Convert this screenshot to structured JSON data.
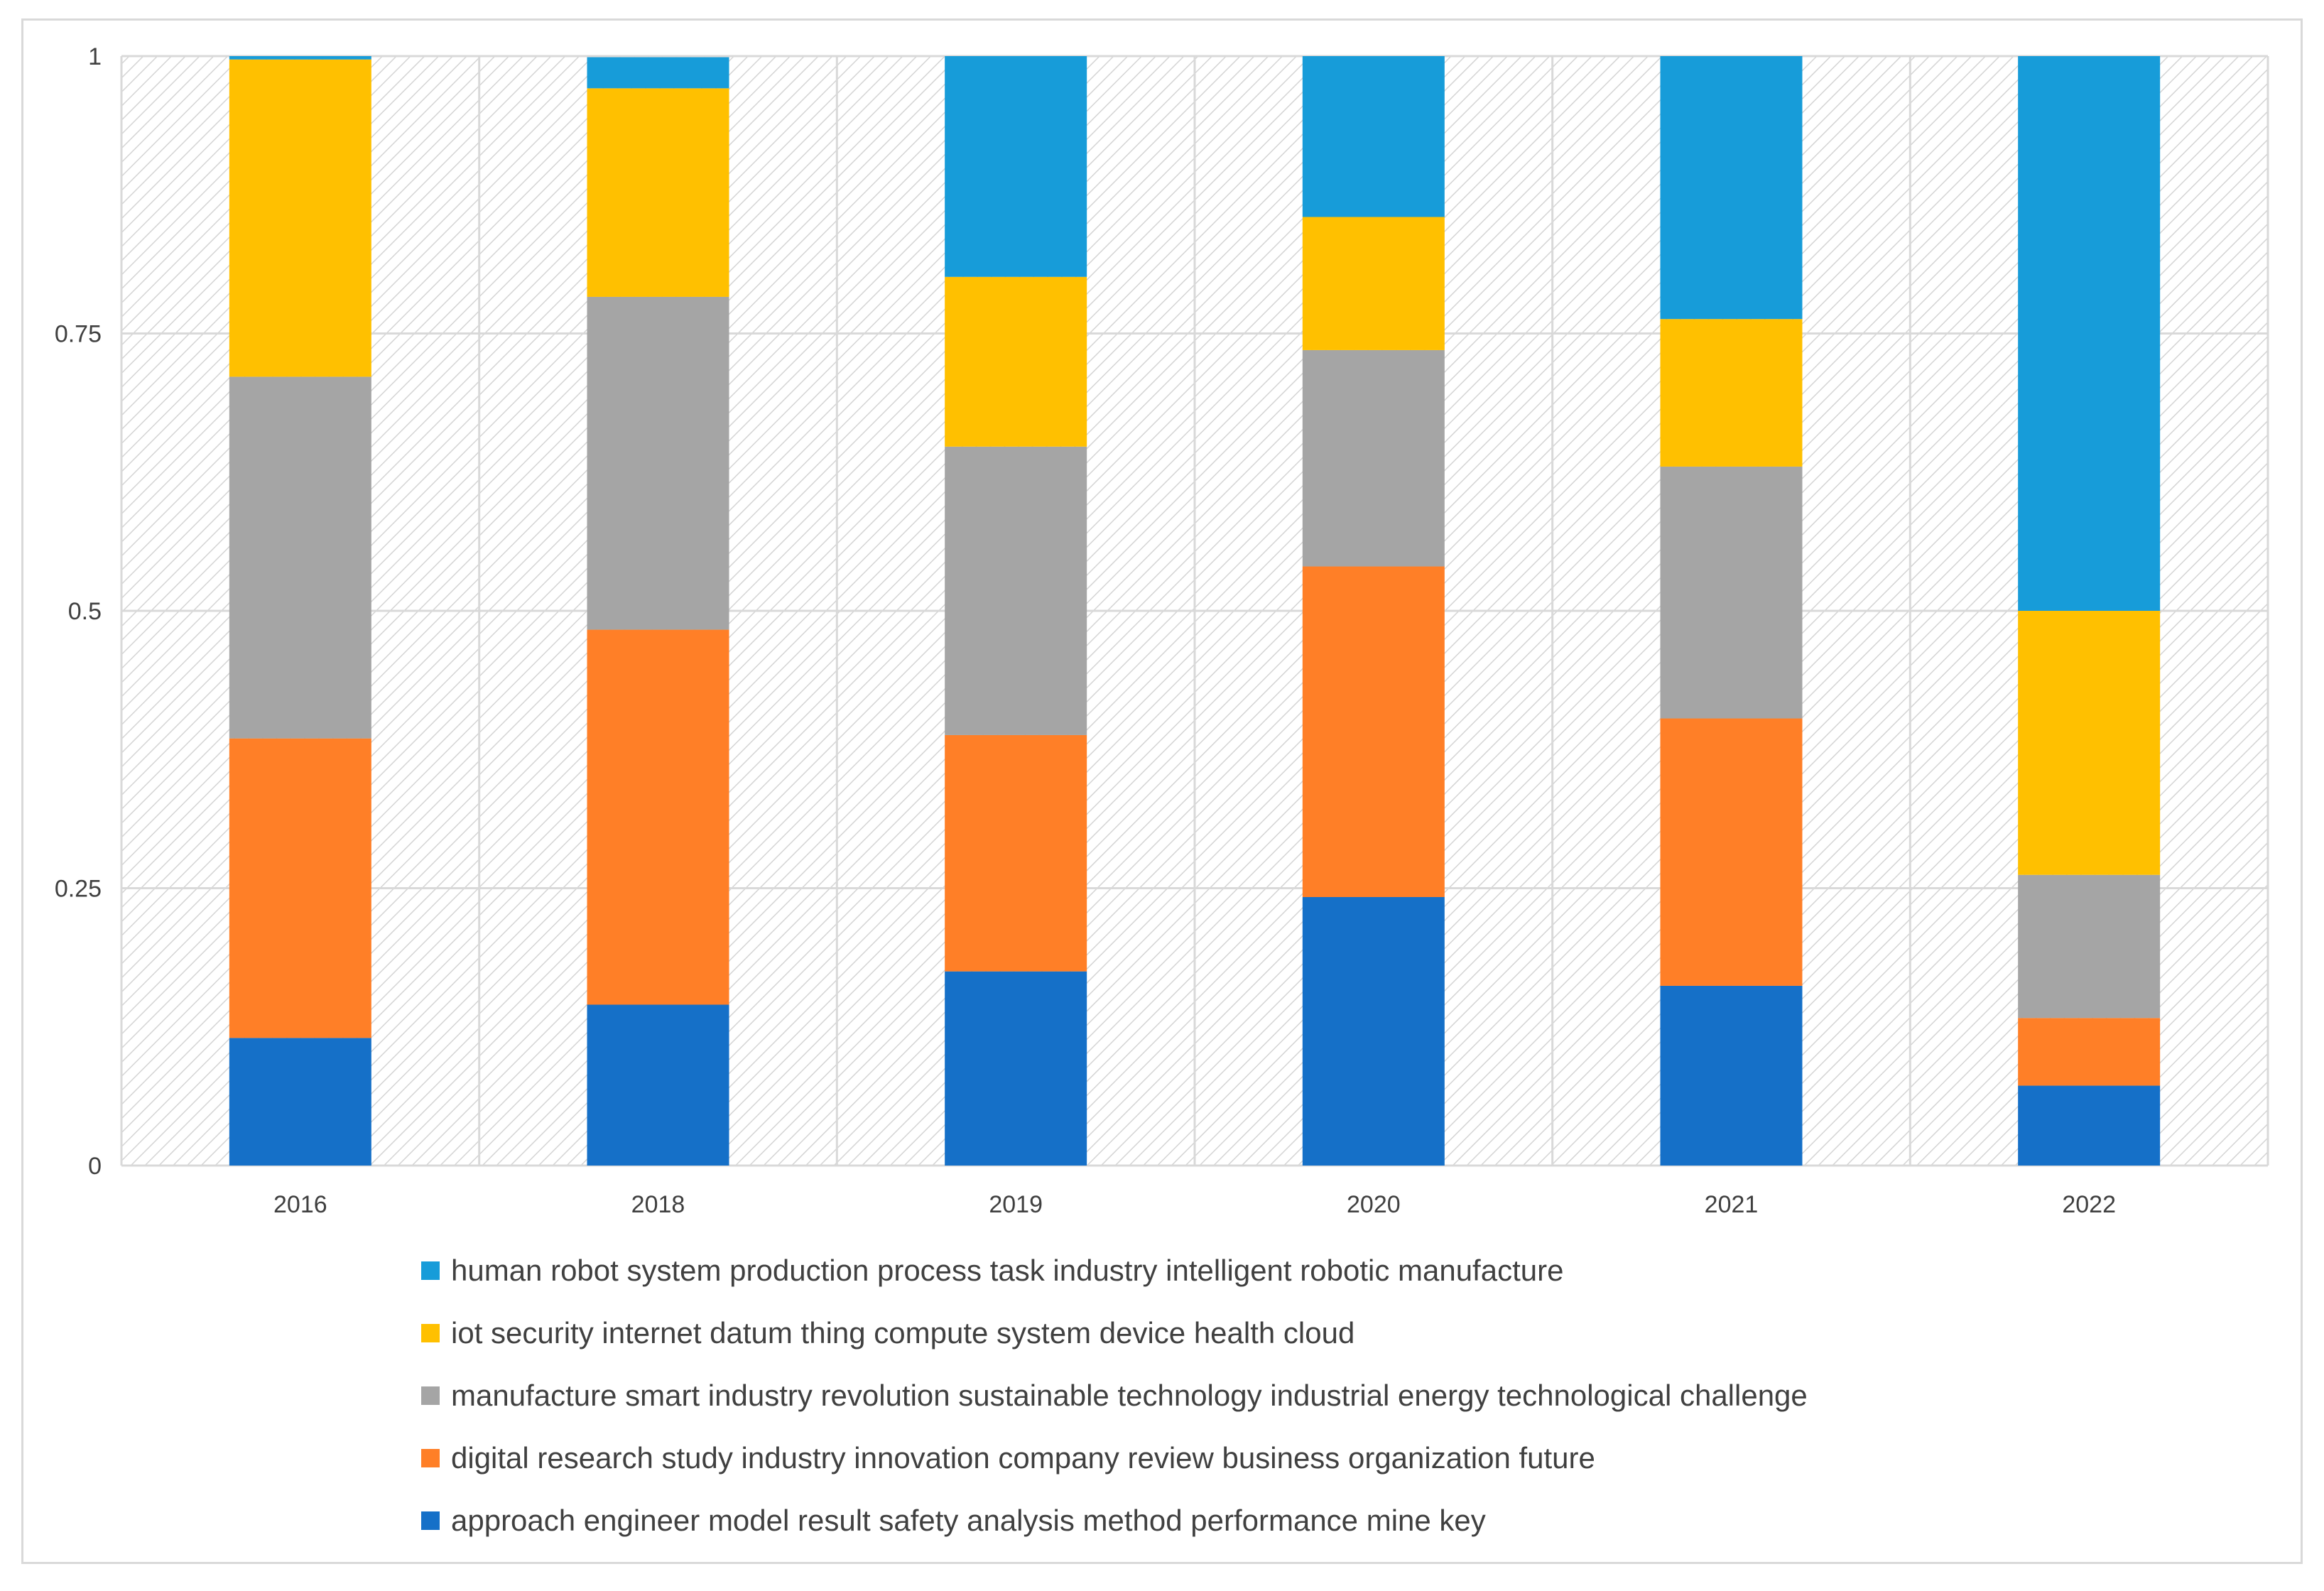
{
  "chart_data": {
    "type": "bar",
    "stacked": true,
    "title": "",
    "xlabel": "",
    "ylabel": "",
    "ylim": [
      0,
      1
    ],
    "yticks": [
      "0",
      "0.25",
      "0.5",
      "0.75",
      "1"
    ],
    "ytick_values": [
      0,
      0.25,
      0.5,
      0.75,
      1
    ],
    "grid": true,
    "legend_position": "bottom",
    "categories": [
      "2016",
      "2018",
      "2019",
      "2020",
      "2021",
      "2022"
    ],
    "series": [
      {
        "name": "approach engineer model result safety analysis method performance mine key",
        "color": "#1570C8",
        "values": [
          0.115,
          0.145,
          0.175,
          0.242,
          0.162,
          0.072
        ]
      },
      {
        "name": "digital research study industry innovation company review business organization future",
        "color": "#FF7F27",
        "values": [
          0.27,
          0.338,
          0.213,
          0.298,
          0.241,
          0.061
        ]
      },
      {
        "name": "manufacture smart industry revolution sustainable technology industrial energy technological challenge",
        "color": "#A5A5A5",
        "values": [
          0.326,
          0.3,
          0.26,
          0.195,
          0.227,
          0.129
        ]
      },
      {
        "name": "iot security internet datum thing compute system device health cloud",
        "color": "#FFC000",
        "values": [
          0.286,
          0.188,
          0.153,
          0.12,
          0.133,
          0.238
        ]
      },
      {
        "name": "human robot system production process task industry intelligent robotic manufacture",
        "color": "#179CD9",
        "values": [
          0.003,
          0.028,
          0.199,
          0.145,
          0.237,
          0.5
        ]
      }
    ]
  }
}
